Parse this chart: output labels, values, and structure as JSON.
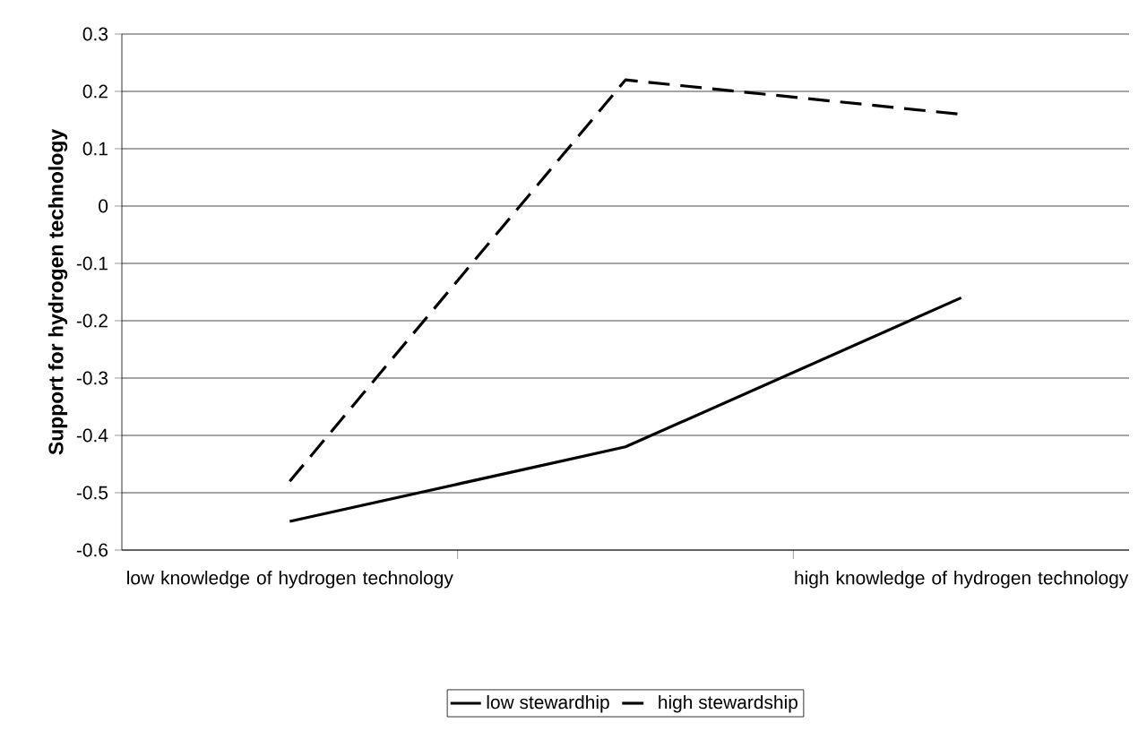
{
  "chart_data": {
    "type": "line",
    "ylabel": "**Support for hydrogen technology**",
    "categories": [
      "low knowledge of hydrogen technology",
      null,
      "high knowledge of hydrogen technology"
    ],
    "series": [
      {
        "name": "low stewardhip",
        "color": "#000000",
        "line_style": "solid",
        "values": [
          -0.55,
          -0.42,
          -0.16
        ]
      },
      {
        "name": "high stewardship",
        "color": "#000000",
        "line_style": "dashed",
        "values": [
          -0.48,
          0.22,
          0.16
        ]
      }
    ],
    "ylim": [
      -0.6,
      0.3
    ],
    "yticks": [
      -0.6,
      -0.5,
      -0.4,
      -0.3,
      -0.2,
      -0.1,
      0,
      0.1,
      0.2,
      0.3
    ],
    "grid": "y",
    "legend": "bottom",
    "marker": "none"
  }
}
